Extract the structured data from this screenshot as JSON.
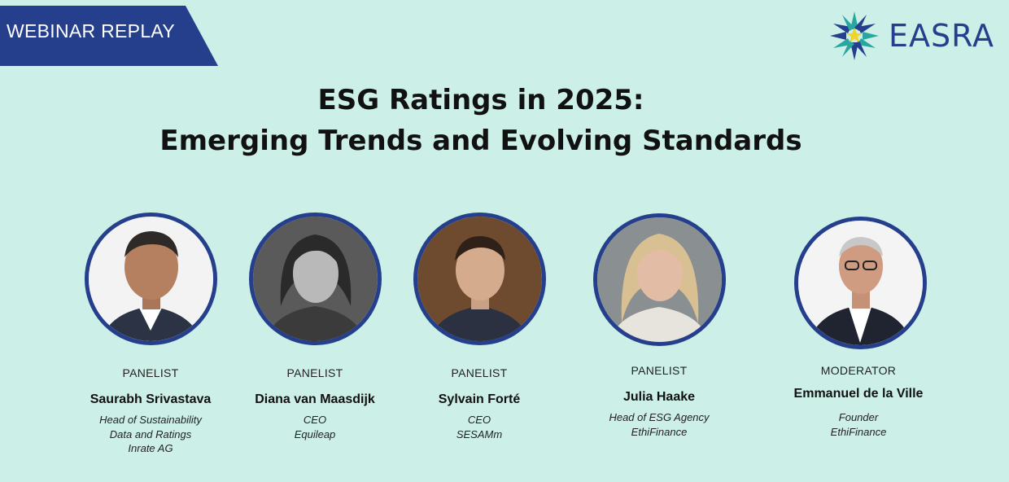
{
  "banner": {
    "label": "WEBINAR REPLAY"
  },
  "logo": {
    "text": "EASRA",
    "icon": "star-burst-logo-icon"
  },
  "title": {
    "line1": "ESG Ratings in 2025:",
    "line2": "Emerging Trends and Evolving Standards"
  },
  "speakers": [
    {
      "role": "PANELIST",
      "name": "Saurabh Srivastava",
      "desc": [
        "Head of Sustainability",
        "Data and Ratings",
        "Inrate AG"
      ]
    },
    {
      "role": "PANELIST",
      "name": "Diana van Maasdijk",
      "desc": [
        "CEO",
        "Equileap"
      ]
    },
    {
      "role": "PANELIST",
      "name": "Sylvain Forté",
      "desc": [
        "CEO",
        "SESAMm"
      ]
    },
    {
      "role": "PANELIST",
      "name": "Julia Haake",
      "desc": [
        "Head of ESG Agency",
        "EthiFinance"
      ]
    },
    {
      "role": "MODERATOR",
      "name": "Emmanuel de la Ville",
      "desc": [
        "Founder",
        "EthiFinance"
      ]
    }
  ],
  "colors": {
    "background": "#ccf0e8",
    "brand_blue": "#253f8c"
  }
}
